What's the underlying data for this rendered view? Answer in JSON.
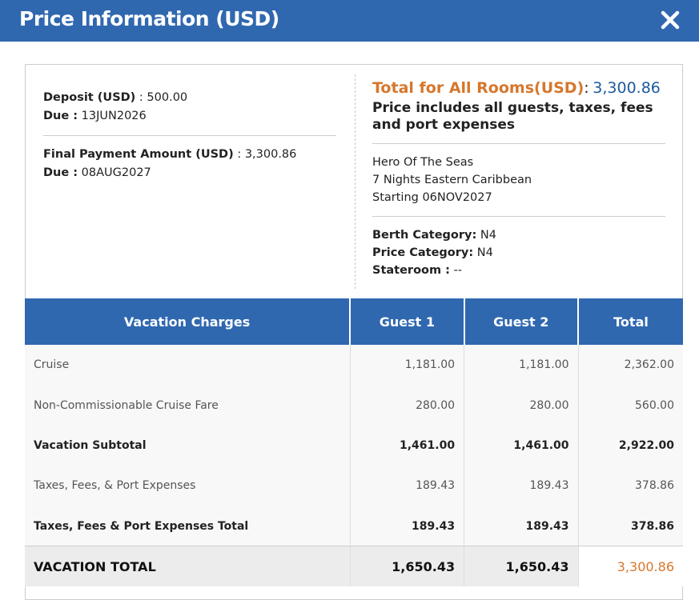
{
  "header": {
    "title": "Price Information (USD)"
  },
  "payments": {
    "deposit": {
      "label": "Deposit (USD)",
      "sep": ":",
      "value": "500.00"
    },
    "deposit_due": {
      "label": "Due :",
      "value": "13JUN2026"
    },
    "final": {
      "label": "Final Payment Amount (USD)",
      "sep": ":",
      "value": "3,300.86"
    },
    "final_due": {
      "label": "Due :",
      "value": "08AUG2027"
    }
  },
  "summary": {
    "total_label": "Total for All Rooms(USD)",
    "total_sep": ":",
    "total_value": "3,300.86",
    "note": "Price includes all guests, taxes, fees and port expenses",
    "ship": "Hero Of The Seas",
    "itinerary": "7 Nights Eastern Caribbean",
    "start": "Starting 06NOV2027",
    "berth": {
      "label": "Berth Category:",
      "value": "N4"
    },
    "price": {
      "label": "Price Category:",
      "value": "N4"
    },
    "stateroom": {
      "label": "Stateroom :",
      "value": "--"
    }
  },
  "table": {
    "columns": [
      "Vacation Charges",
      "Guest 1",
      "Guest 2",
      "Total"
    ],
    "rows": [
      [
        "Cruise",
        "1,181.00",
        "1,181.00",
        "2,362.00"
      ],
      [
        "Non-Commissionable Cruise Fare",
        "280.00",
        "280.00",
        "560.00"
      ],
      [
        "Vacation Subtotal",
        "1,461.00",
        "1,461.00",
        "2,922.00"
      ],
      [
        "Taxes, Fees, & Port Expenses",
        "189.43",
        "189.43",
        "378.86"
      ],
      [
        "Taxes, Fees & Port Expenses Total",
        "189.43",
        "189.43",
        "378.86"
      ],
      [
        "VACATION TOTAL",
        "1,650.43",
        "1,650.43",
        "3,300.86"
      ]
    ]
  }
}
